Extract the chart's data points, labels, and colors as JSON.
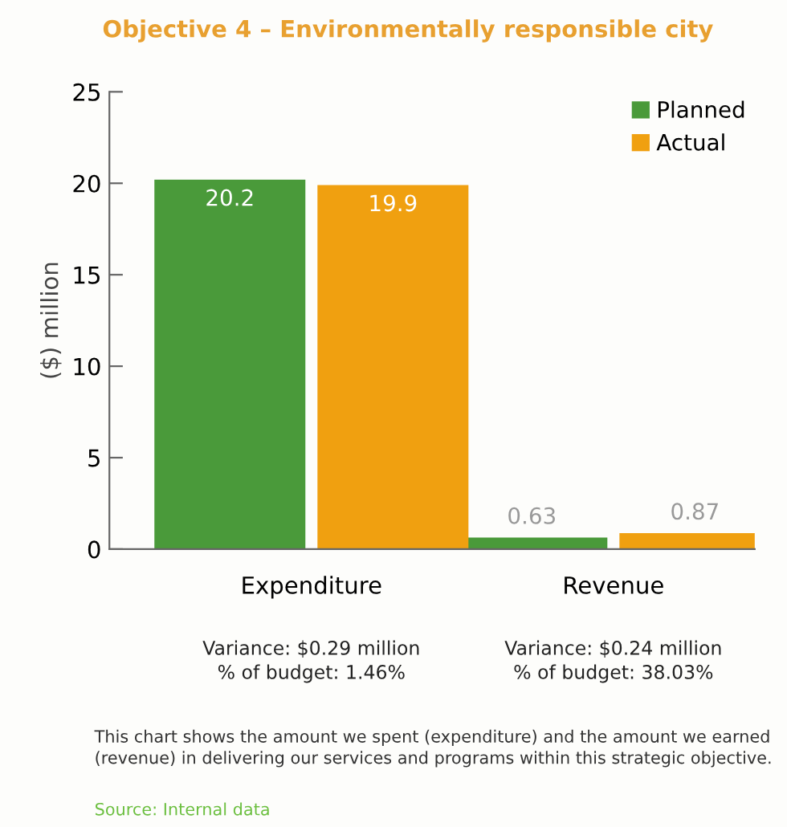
{
  "chart_data": {
    "type": "bar",
    "title": "Objective 4 – Environmentally responsible city",
    "ylabel": "($) million",
    "categories": [
      "Expenditure",
      "Revenue"
    ],
    "series": [
      {
        "name": "Planned",
        "color": "#4a9a3a",
        "values": [
          20.2,
          0.63
        ]
      },
      {
        "name": "Actual",
        "color": "#f0a010",
        "values": [
          19.9,
          0.87
        ]
      }
    ],
    "ylim": [
      0,
      25
    ],
    "yticks": [
      0,
      5,
      10,
      15,
      20,
      25
    ],
    "data_labels": true,
    "legend": "top right",
    "grid": false,
    "annotations": [
      "Variance: $0.29 million\n% of budget: 1.46%",
      "Variance: $0.24 million\n% of budget: 38.03%",
      "This chart shows the amount we spent (expenditure) and the amount we earned (revenue) in delivering our services and programs within this strategic objective.",
      "Source: Internal data"
    ]
  }
}
